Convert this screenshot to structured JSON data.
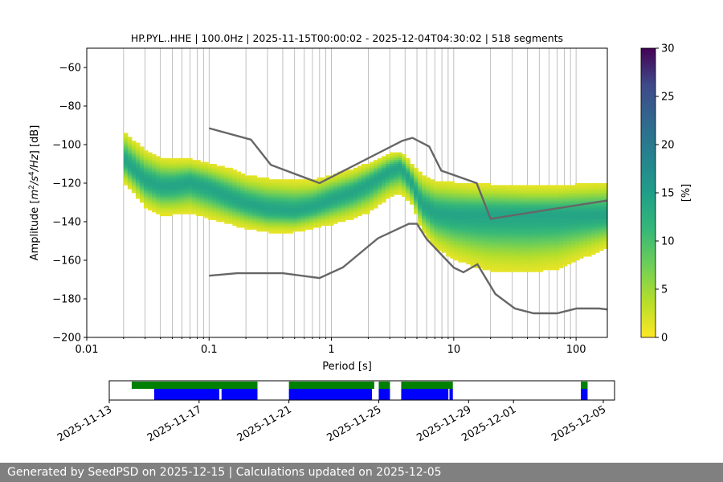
{
  "chart_data": {
    "type": "heatmap",
    "title": "HP.PYL..HHE | 100.0Hz | 2025-11-15T00:00:02 - 2025-12-04T04:30:02 | 518 segments",
    "xlabel": "Period [s]",
    "ylabel": "Amplitude [m²/s⁴/Hz] [dB]",
    "xscale": "log",
    "xlim": [
      0.01,
      180
    ],
    "ylim": [
      -200,
      -50
    ],
    "xticks": [
      {
        "value": 0.01,
        "label": "0.01"
      },
      {
        "value": 0.1,
        "label": "0.1"
      },
      {
        "value": 1,
        "label": "1"
      },
      {
        "value": 10,
        "label": "10"
      },
      {
        "value": 100,
        "label": "100"
      }
    ],
    "yticks": [
      {
        "value": -60,
        "label": "−60"
      },
      {
        "value": -80,
        "label": "−80"
      },
      {
        "value": -100,
        "label": "−100"
      },
      {
        "value": -120,
        "label": "−120"
      },
      {
        "value": -140,
        "label": "−140"
      },
      {
        "value": -160,
        "label": "−160"
      },
      {
        "value": -180,
        "label": "−180"
      },
      {
        "value": -200,
        "label": "−200"
      }
    ],
    "colorbar": {
      "label": "[%]",
      "range": [
        0,
        30
      ],
      "ticks": [
        {
          "value": 0,
          "label": "0"
        },
        {
          "value": 5,
          "label": "5"
        },
        {
          "value": 10,
          "label": "10"
        },
        {
          "value": 15,
          "label": "15"
        },
        {
          "value": 20,
          "label": "20"
        },
        {
          "value": 25,
          "label": "25"
        },
        {
          "value": 30,
          "label": "30"
        }
      ]
    },
    "psd_mode": {
      "periods": [
        0.02,
        0.025,
        0.03,
        0.04,
        0.05,
        0.07,
        0.1,
        0.15,
        0.2,
        0.3,
        0.5,
        0.7,
        1,
        1.5,
        2,
        3,
        3.7,
        4.5,
        5.5,
        7,
        10,
        15,
        20,
        40,
        70,
        100,
        180
      ],
      "values": [
        -108,
        -114,
        -119,
        -122,
        -122,
        -120,
        -123,
        -128,
        -131,
        -134,
        -135,
        -133,
        -129,
        -125,
        -121,
        -114,
        -112,
        -120,
        -132,
        -136,
        -137,
        -137,
        -137,
        -137,
        -137,
        -137,
        -137
      ],
      "upper": [
        -93,
        -99,
        -103,
        -107,
        -108,
        -108,
        -110,
        -113,
        -116,
        -118,
        -119,
        -119,
        -116,
        -113,
        -110,
        -105,
        -104,
        -110,
        -116,
        -119,
        -120,
        -121,
        -121,
        -122,
        -122,
        -121,
        -120
      ],
      "lower": [
        -120,
        -127,
        -133,
        -137,
        -137,
        -136,
        -139,
        -142,
        -144,
        -146,
        -146,
        -144,
        -142,
        -139,
        -136,
        -128,
        -126,
        -131,
        -145,
        -154,
        -160,
        -164,
        -166,
        -167,
        -165,
        -161,
        -154
      ]
    },
    "noise_models": [
      {
        "name": "NHNM",
        "periods": [
          0.1,
          0.22,
          0.32,
          0.8,
          3.8,
          4.6,
          6.3,
          7.9,
          15.4,
          20,
          180
        ],
        "values": [
          -91.5,
          -97.4,
          -110.5,
          -120,
          -98,
          -96.5,
          -101,
          -113.5,
          -120,
          -138.5,
          -129
        ]
      },
      {
        "name": "NLNM",
        "periods": [
          0.1,
          0.17,
          0.4,
          0.8,
          1.24,
          2.4,
          4.3,
          5,
          6,
          10,
          12,
          15.6,
          21.9,
          31.6,
          45,
          70,
          101,
          154,
          180
        ],
        "values": [
          -168,
          -166.7,
          -166.7,
          -169.2,
          -163.7,
          -148.6,
          -141.1,
          -141.1,
          -149,
          -163.8,
          -166.2,
          -162.1,
          -177.5,
          -185,
          -187.5,
          -187.5,
          -185,
          -185,
          -185.5
        ]
      }
    ],
    "availability": {
      "x_start": "2025-11-13",
      "x_end": "2025-12-05",
      "ticks": [
        "2025-11-13",
        "2025-11-17",
        "2025-11-21",
        "2025-11-25",
        "2025-11-29",
        "2025-12-01",
        "2025-12-05"
      ],
      "data_segments": [
        [
          1.0,
          6.6
        ],
        [
          8.0,
          11.8
        ],
        [
          12.0,
          12.5
        ],
        [
          13.0,
          15.3
        ],
        [
          21.0,
          21.3
        ]
      ],
      "used_segments": [
        [
          2.0,
          4.9
        ],
        [
          5.0,
          6.6
        ],
        [
          8.0,
          11.7
        ],
        [
          12.0,
          12.5
        ],
        [
          13.0,
          15.1
        ],
        [
          15.15,
          15.3
        ],
        [
          21.0,
          21.3
        ]
      ]
    }
  },
  "colors": {
    "green": "#008000",
    "blue": "#0000ff",
    "model_line": "#666666",
    "footer_bg": "#808080"
  },
  "footer": {
    "text": "Generated by SeedPSD on 2025-12-15 | Calculations updated on 2025-12-05"
  }
}
